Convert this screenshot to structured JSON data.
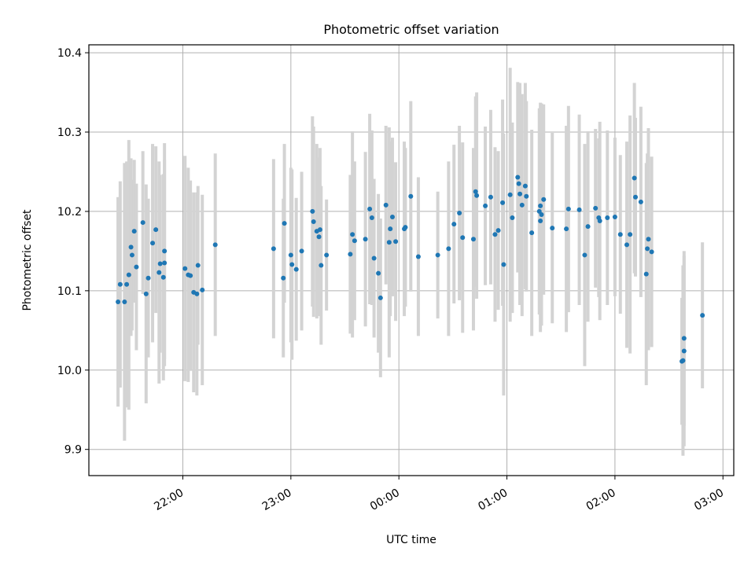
{
  "chart_data": {
    "type": "scatter",
    "title": "Photometric offset variation",
    "xlabel": "UTC time",
    "ylabel": "Photometric offset",
    "x_unit": "UTC time, hours after 00:00 of the second night (negative = previous evening)",
    "xlim": [
      -2.87,
      3.1
    ],
    "ylim": [
      9.867,
      10.41
    ],
    "x_ticks": [
      -2,
      -1,
      0,
      1,
      2,
      3
    ],
    "x_tick_labels": [
      "22:00",
      "23:00",
      "00:00",
      "01:00",
      "02:00",
      "03:00"
    ],
    "y_ticks": [
      9.9,
      10.0,
      10.1,
      10.2,
      10.3,
      10.4
    ],
    "y_tick_labels": [
      "9.9",
      "10.0",
      "10.1",
      "10.2",
      "10.3",
      "10.4"
    ],
    "grid": true,
    "legend": "none",
    "point_color": "#1f77b4",
    "errorbar_color": "#d3d3d3",
    "points": [
      [
        -2.6,
        10.086,
        0.132
      ],
      [
        -2.58,
        10.108,
        0.13
      ],
      [
        -2.54,
        10.086,
        0.175
      ],
      [
        -2.52,
        10.108,
        0.155
      ],
      [
        -2.5,
        10.12,
        0.17
      ],
      [
        -2.48,
        10.155,
        0.112
      ],
      [
        -2.47,
        10.145,
        0.095
      ],
      [
        -2.45,
        10.175,
        0.09
      ],
      [
        -2.43,
        10.13,
        0.105
      ],
      [
        -2.37,
        10.186,
        0.09
      ],
      [
        -2.34,
        10.096,
        0.138
      ],
      [
        -2.32,
        10.116,
        0.1
      ],
      [
        -2.28,
        10.16,
        0.125
      ],
      [
        -2.25,
        10.177,
        0.105
      ],
      [
        -2.22,
        10.123,
        0.14
      ],
      [
        -2.21,
        10.134,
        0.112
      ],
      [
        -2.18,
        10.117,
        0.13
      ],
      [
        -2.17,
        10.135,
        0.13
      ],
      [
        -2.17,
        10.15,
        0.136
      ],
      [
        -1.98,
        10.128,
        0.142
      ],
      [
        -1.95,
        10.12,
        0.135
      ],
      [
        -1.93,
        10.119,
        0.12
      ],
      [
        -1.9,
        10.098,
        0.126
      ],
      [
        -1.87,
        10.096,
        0.128
      ],
      [
        -1.86,
        10.132,
        0.1
      ],
      [
        -1.82,
        10.101,
        0.12
      ],
      [
        -1.7,
        10.158,
        0.115
      ],
      [
        -1.16,
        10.153,
        0.113
      ],
      [
        -1.06,
        10.185,
        0.1
      ],
      [
        -1.07,
        10.116,
        0.1
      ],
      [
        -1.0,
        10.145,
        0.11
      ],
      [
        -0.99,
        10.133,
        0.12
      ],
      [
        -0.95,
        10.127,
        0.09
      ],
      [
        -0.9,
        10.15,
        0.1
      ],
      [
        -0.8,
        10.2,
        0.12
      ],
      [
        -0.79,
        10.187,
        0.12
      ],
      [
        -0.76,
        10.175,
        0.11
      ],
      [
        -0.74,
        10.168,
        0.1
      ],
      [
        -0.73,
        10.177,
        0.103
      ],
      [
        -0.72,
        10.132,
        0.1
      ],
      [
        -0.67,
        10.145,
        0.07
      ],
      [
        -0.45,
        10.146,
        0.1
      ],
      [
        -0.43,
        10.171,
        0.13
      ],
      [
        -0.41,
        10.163,
        0.1
      ],
      [
        -0.31,
        10.165,
        0.11
      ],
      [
        -0.27,
        10.203,
        0.12
      ],
      [
        -0.25,
        10.192,
        0.11
      ],
      [
        -0.23,
        10.141,
        0.1
      ],
      [
        -0.19,
        10.122,
        0.1
      ],
      [
        -0.17,
        10.091,
        0.1
      ],
      [
        -0.12,
        10.208,
        0.1
      ],
      [
        -0.09,
        10.161,
        0.145
      ],
      [
        -0.08,
        10.178,
        0.11
      ],
      [
        -0.06,
        10.193,
        0.1
      ],
      [
        -0.03,
        10.162,
        0.1
      ],
      [
        0.05,
        10.178,
        0.11
      ],
      [
        0.06,
        10.18,
        0.1
      ],
      [
        0.11,
        10.219,
        0.12
      ],
      [
        0.18,
        10.143,
        0.1
      ],
      [
        0.36,
        10.145,
        0.08
      ],
      [
        0.46,
        10.153,
        0.11
      ],
      [
        0.51,
        10.184,
        0.1
      ],
      [
        0.56,
        10.198,
        0.11
      ],
      [
        0.59,
        10.167,
        0.12
      ],
      [
        0.69,
        10.165,
        0.115
      ],
      [
        0.71,
        10.225,
        0.12
      ],
      [
        0.72,
        10.22,
        0.13
      ],
      [
        0.8,
        10.207,
        0.1
      ],
      [
        0.85,
        10.218,
        0.11
      ],
      [
        0.89,
        10.171,
        0.11
      ],
      [
        0.92,
        10.176,
        0.1
      ],
      [
        0.96,
        10.211,
        0.13
      ],
      [
        0.97,
        10.133,
        0.165
      ],
      [
        1.03,
        10.221,
        0.16
      ],
      [
        1.05,
        10.192,
        0.12
      ],
      [
        1.1,
        10.243,
        0.12
      ],
      [
        1.11,
        10.235,
        0.1
      ],
      [
        1.12,
        10.222,
        0.14
      ],
      [
        1.14,
        10.208,
        0.14
      ],
      [
        1.17,
        10.232,
        0.13
      ],
      [
        1.18,
        10.219,
        0.12
      ],
      [
        1.23,
        10.173,
        0.13
      ],
      [
        1.3,
        10.2,
        0.13
      ],
      [
        1.31,
        10.207,
        0.13
      ],
      [
        1.31,
        10.188,
        0.14
      ],
      [
        1.32,
        10.196,
        0.14
      ],
      [
        1.34,
        10.215,
        0.12
      ],
      [
        1.42,
        10.179,
        0.12
      ],
      [
        1.55,
        10.178,
        0.13
      ],
      [
        1.57,
        10.203,
        0.13
      ],
      [
        1.67,
        10.202,
        0.12
      ],
      [
        1.72,
        10.145,
        0.14
      ],
      [
        1.75,
        10.181,
        0.12
      ],
      [
        1.82,
        10.204,
        0.1
      ],
      [
        1.85,
        10.192,
        0.1
      ],
      [
        1.86,
        10.188,
        0.125
      ],
      [
        1.93,
        10.192,
        0.11
      ],
      [
        2.0,
        10.193,
        0.1
      ],
      [
        2.05,
        10.171,
        0.1
      ],
      [
        2.11,
        10.158,
        0.13
      ],
      [
        2.14,
        10.171,
        0.15
      ],
      [
        2.18,
        10.242,
        0.12
      ],
      [
        2.19,
        10.218,
        0.1
      ],
      [
        2.24,
        10.212,
        0.12
      ],
      [
        2.29,
        10.121,
        0.14
      ],
      [
        2.3,
        10.153,
        0.12
      ],
      [
        2.31,
        10.165,
        0.14
      ],
      [
        2.34,
        10.149,
        0.12
      ],
      [
        2.62,
        10.011,
        0.08
      ],
      [
        2.63,
        10.012,
        0.12
      ],
      [
        2.64,
        10.024,
        0.12
      ],
      [
        2.64,
        10.04,
        0.11
      ],
      [
        2.81,
        10.069,
        0.092
      ]
    ]
  }
}
